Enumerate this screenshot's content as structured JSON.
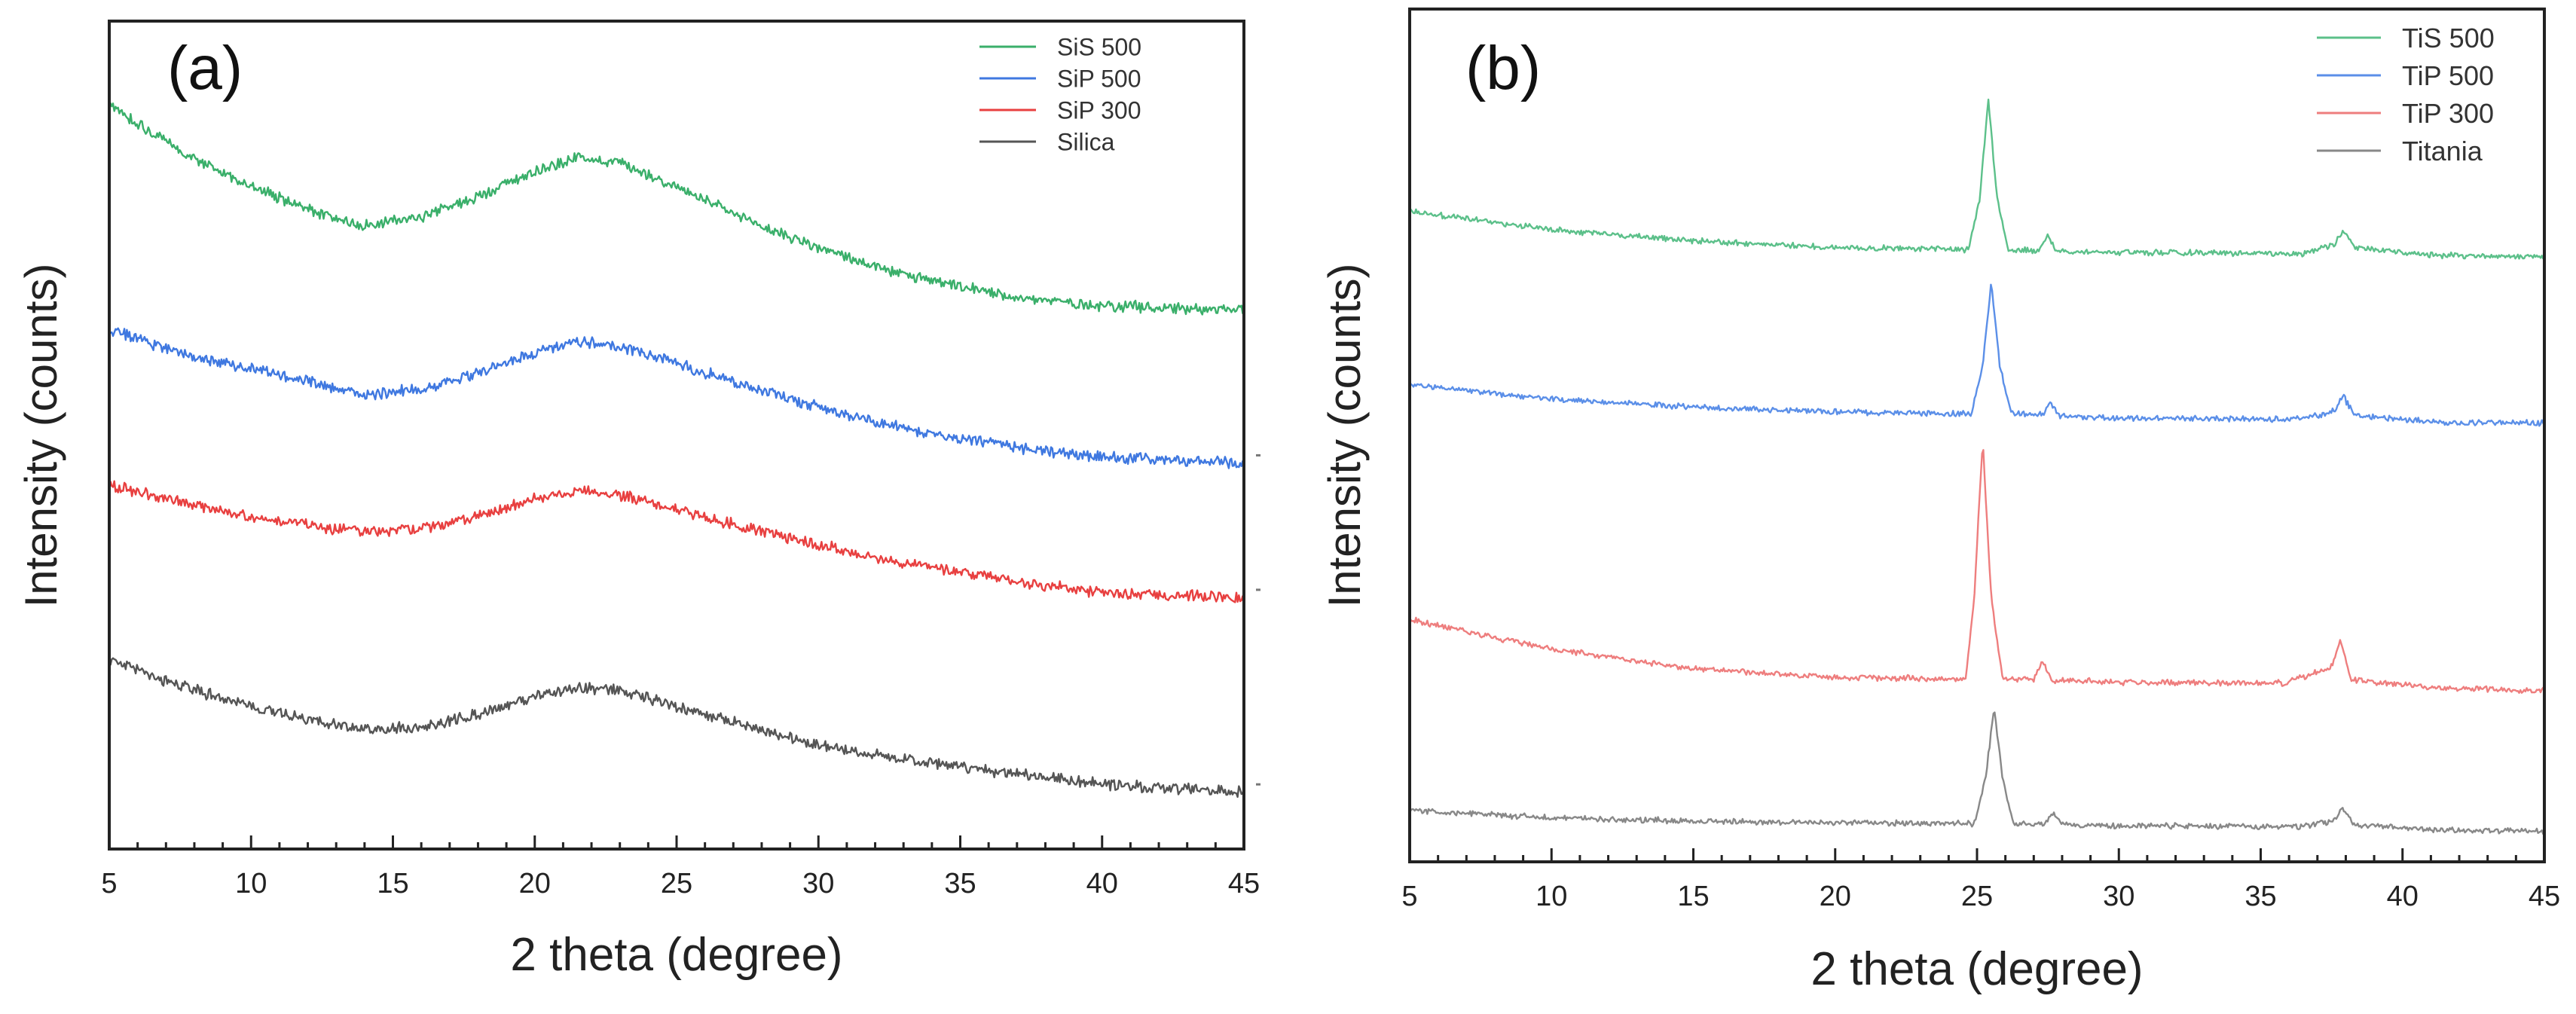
{
  "chart_data": [
    {
      "type": "line",
      "panel_label": "(a)",
      "xlabel": "2 theta (degree)",
      "ylabel": "Intensity (counts)",
      "xlim": [
        5,
        45
      ],
      "ylim": [
        0,
        100
      ],
      "yticks_shown": false,
      "xticks": [
        5,
        10,
        15,
        20,
        25,
        30,
        35,
        40,
        45
      ],
      "legend_position": "top-right",
      "series": [
        {
          "name": "SiS 500",
          "color": "#3aaf6a",
          "x": [
            5,
            7.5,
            10,
            12.5,
            14,
            16,
            18,
            20,
            21.5,
            23,
            25,
            27.5,
            30,
            32.5,
            35,
            37.5,
            40,
            42.5,
            45
          ],
          "y": [
            92.5,
            86.6,
            82.1,
            78.5,
            77.2,
            78.3,
            80.9,
            84.1,
            85.8,
            85.2,
            82.1,
            77.8,
            74.4,
            71.4,
            69.4,
            67.9,
            67.1,
            66.8,
            66.5
          ]
        },
        {
          "name": "SiP 500",
          "color": "#3f78e0",
          "x": [
            5,
            7.5,
            10,
            12.5,
            14,
            16,
            18,
            20,
            21.5,
            23,
            25,
            27.5,
            30,
            32.5,
            35,
            37.5,
            40,
            42.5,
            45
          ],
          "y": [
            64.1,
            61.0,
            59.1,
            57.0,
            55.8,
            56.5,
            58.6,
            61.1,
            62.5,
            61.9,
            59.8,
            56.9,
            54.2,
            51.9,
            50.3,
            48.9,
            47.9,
            47.5,
            47.2
          ]
        },
        {
          "name": "SiP 300",
          "color": "#e84040",
          "x": [
            5,
            7.5,
            10,
            12.5,
            14,
            16,
            18,
            20,
            21.5,
            23,
            25,
            27.5,
            30,
            32.5,
            35,
            37.5,
            40,
            42.5,
            45
          ],
          "y": [
            44.4,
            42.2,
            40.4,
            39.0,
            38.6,
            38.9,
            40.4,
            42.6,
            43.7,
            43.1,
            41.4,
            38.9,
            36.8,
            34.9,
            33.4,
            31.9,
            30.8,
            30.5,
            30.2
          ]
        },
        {
          "name": "Silica",
          "color": "#555555",
          "x": [
            5,
            7.5,
            10,
            12.5,
            14,
            16,
            18,
            20,
            21.5,
            23,
            25,
            27.5,
            30,
            32.5,
            35,
            37.5,
            40,
            42.5,
            45
          ],
          "y": [
            22.4,
            19.0,
            16.4,
            14.4,
            13.4,
            13.8,
            15.4,
            17.6,
            18.8,
            18.4,
            16.4,
            13.9,
            11.6,
            10.0,
            8.8,
            7.6,
            6.6,
            6.0,
            5.6
          ]
        }
      ]
    },
    {
      "type": "line",
      "panel_label": "(b)",
      "xlabel": "2 theta (degree)",
      "ylabel": "Intensity (counts)",
      "xlim": [
        5,
        45
      ],
      "ylim": [
        0,
        100
      ],
      "yticks_shown": false,
      "xticks": [
        5,
        10,
        15,
        20,
        25,
        30,
        35,
        40,
        45
      ],
      "legend_position": "top-right",
      "series": [
        {
          "name": "TiS 500",
          "color": "#5cc08a",
          "x": [
            5,
            10,
            15,
            20,
            24.7,
            25.1,
            25.4,
            25.7,
            26.1,
            27.2,
            27.5,
            27.8,
            30,
            36.5,
            37.6,
            37.9,
            38.3,
            41.2,
            45
          ],
          "y": [
            79.3,
            77.0,
            75.6,
            74.8,
            74.5,
            81.0,
            93.3,
            81.0,
            74.6,
            74.4,
            76.1,
            74.4,
            74.2,
            74.0,
            75.2,
            76.9,
            74.8,
            73.8,
            73.6
          ]
        },
        {
          "name": "TiP 500",
          "color": "#5b8fe8",
          "x": [
            5,
            10,
            15,
            20,
            24.8,
            25.2,
            25.5,
            25.8,
            26.2,
            27.3,
            27.6,
            27.9,
            30,
            36.5,
            37.6,
            37.9,
            38.3,
            41.2,
            45
          ],
          "y": [
            57.7,
            55.9,
            54.9,
            54.3,
            54.0,
            60.2,
            70.4,
            60.2,
            54.1,
            53.9,
            55.5,
            53.8,
            53.5,
            53.4,
            54.4,
            56.3,
            53.9,
            53.0,
            52.9
          ]
        },
        {
          "name": "TiP 300",
          "color": "#ee7e7e",
          "x": [
            5,
            10,
            15,
            20,
            24.6,
            24.9,
            25.2,
            25.5,
            25.9,
            27.0,
            27.3,
            27.6,
            30,
            35.9,
            37.5,
            37.8,
            38.2,
            41.1,
            45
          ],
          "y": [
            28.4,
            24.7,
            22.3,
            21.2,
            21.0,
            31.2,
            50.8,
            31.2,
            21.0,
            20.9,
            23.5,
            20.9,
            20.6,
            20.5,
            22.5,
            25.7,
            20.9,
            19.9,
            19.6
          ]
        },
        {
          "name": "Titania",
          "color": "#888888",
          "x": [
            5,
            10,
            15,
            20,
            24.9,
            25.3,
            25.6,
            25.9,
            26.3,
            27.4,
            27.7,
            28.0,
            30,
            36.5,
            37.6,
            37.9,
            38.3,
            41.2,
            45
          ],
          "y": [
            4.6,
            3.7,
            3.3,
            3.1,
            3.0,
            8.5,
            17.4,
            8.5,
            3.0,
            2.9,
            4.3,
            2.9,
            2.7,
            2.6,
            3.4,
            4.9,
            2.8,
            2.2,
            2.0
          ]
        }
      ]
    }
  ]
}
